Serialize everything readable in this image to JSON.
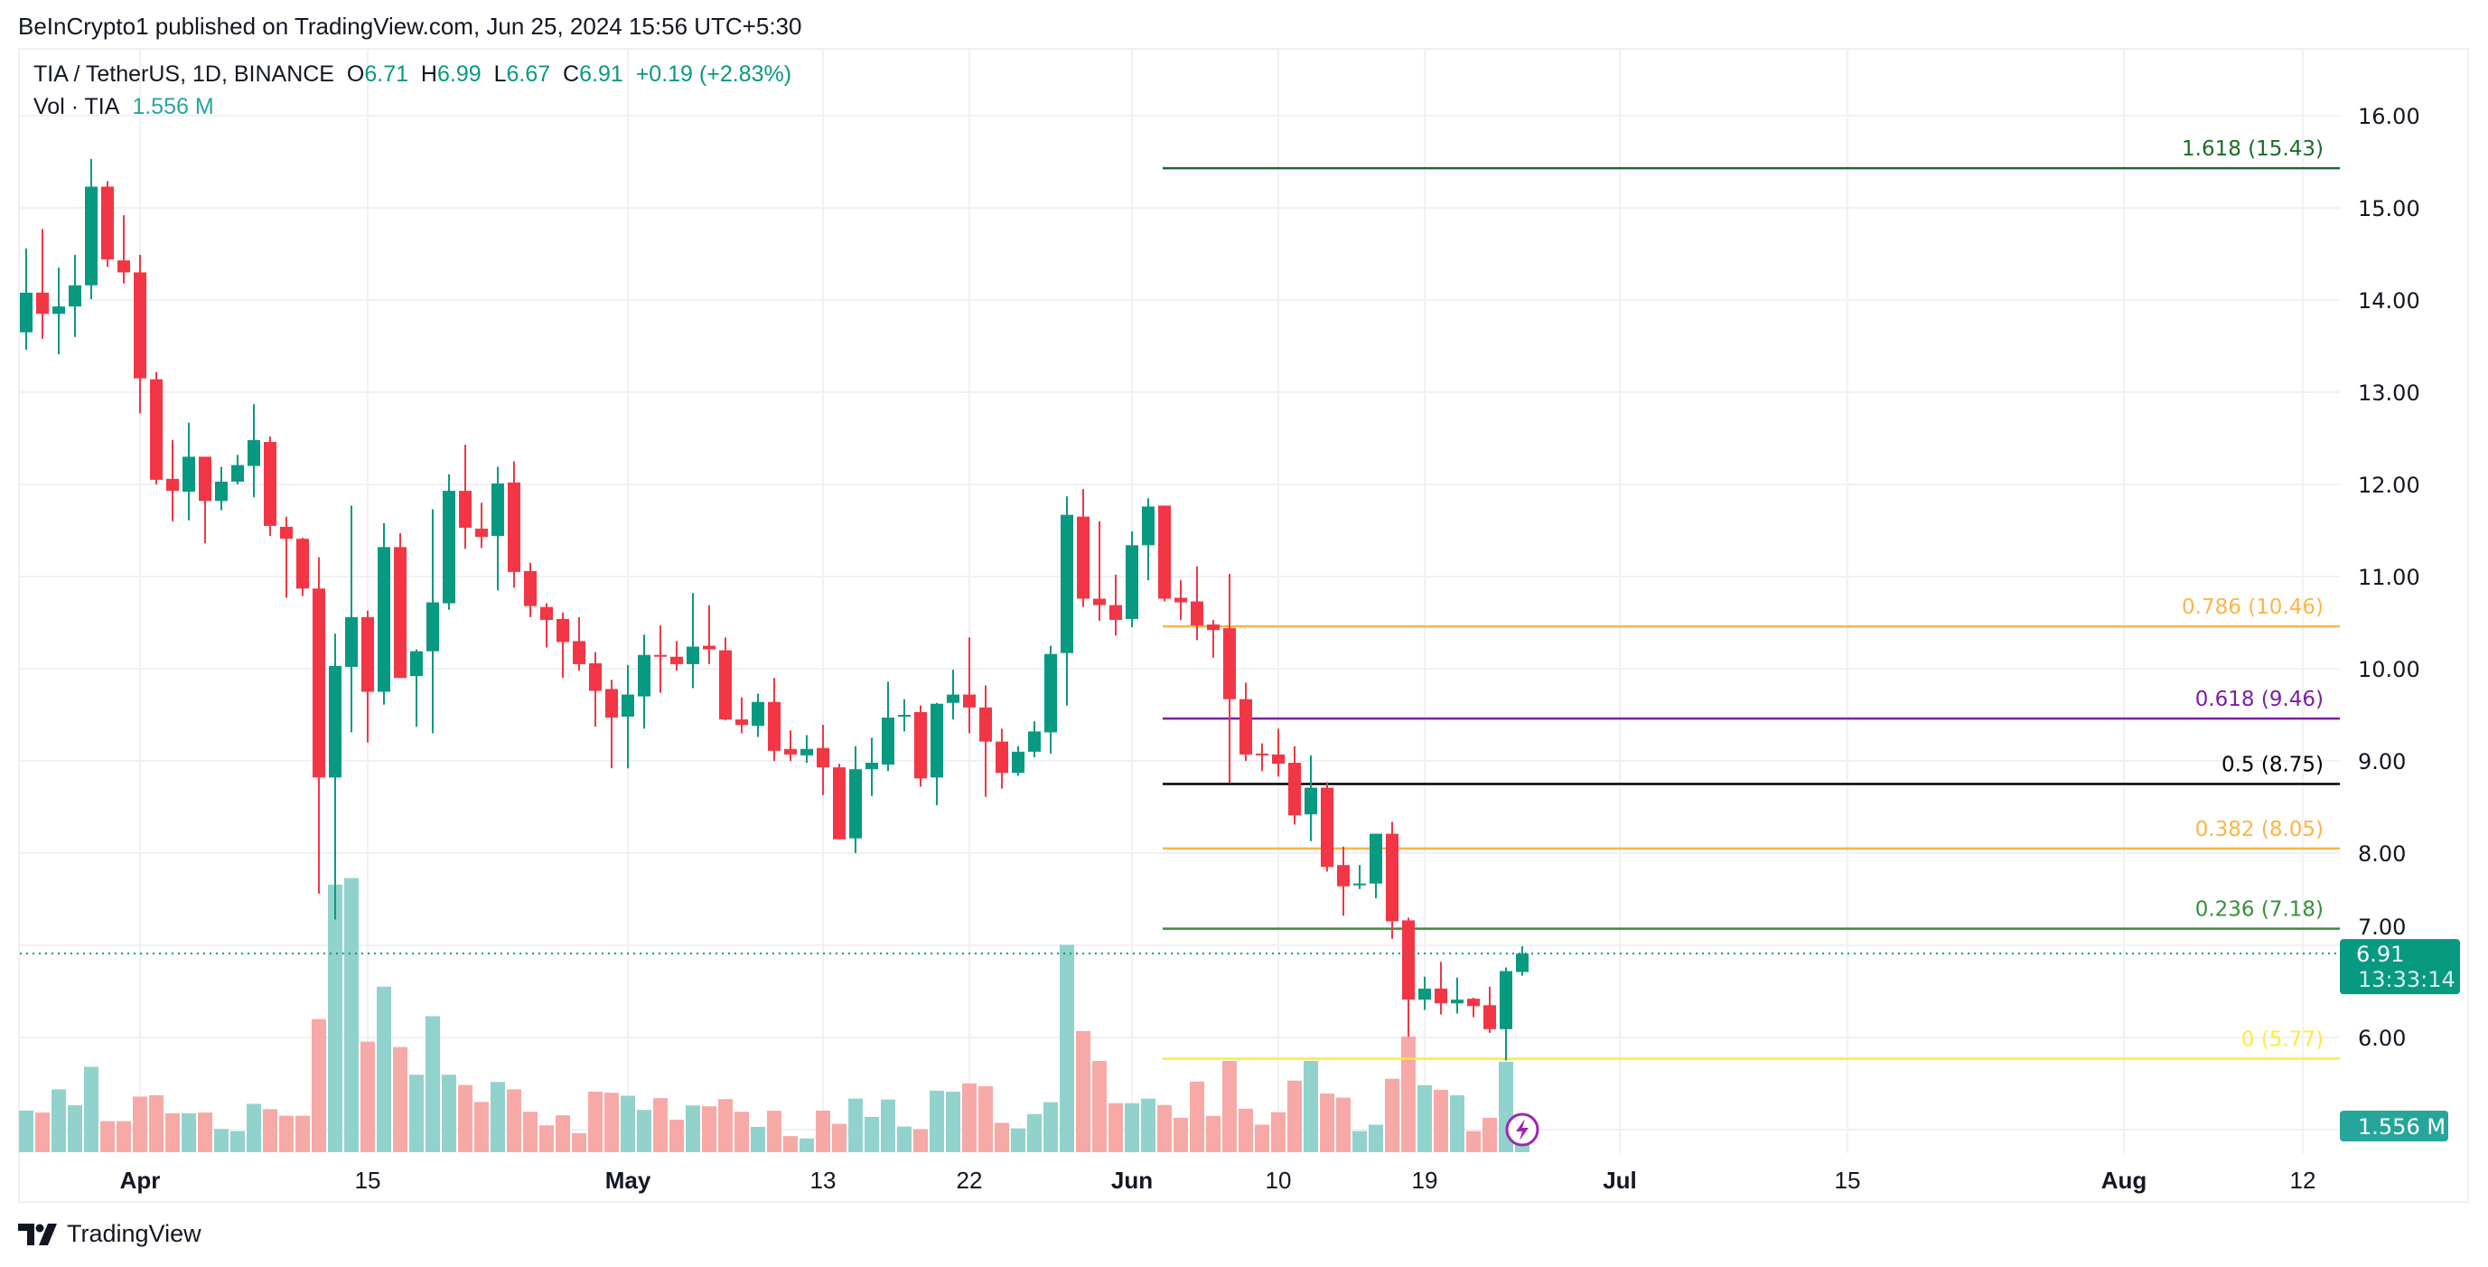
{
  "header": {
    "published": "BeInCrypto1 published on TradingView.com, Jun 25, 2024 15:56 UTC+5:30"
  },
  "legend": {
    "symbol": "TIA / TetherUS, 1D, BINANCE",
    "o_label": "O",
    "o": "6.71",
    "h_label": "H",
    "h": "6.99",
    "l_label": "L",
    "l": "6.67",
    "c_label": "C",
    "c": "6.91",
    "change": "+0.19 (+2.83%)",
    "vol_label": "Vol · TIA",
    "vol": "1.556 M"
  },
  "badges": {
    "price": "6.91",
    "countdown": "13:33:14",
    "volume": "1.556 M"
  },
  "footer": {
    "brand": "TradingView",
    "logo_icon": "tradingview-logo-icon"
  },
  "colors": {
    "up": "#089981",
    "down": "#F23645",
    "vol_up": "#92d2cc",
    "vol_down": "#f7a9a7",
    "grid": "#f0f1f4"
  },
  "chart_data": {
    "type": "candlestick",
    "interval": "1D",
    "first_date": "2024-03-25",
    "ylim": [
      5,
      16
    ],
    "y_ticks": [
      "6.00",
      "7.00",
      "8.00",
      "9.00",
      "10.00",
      "11.00",
      "12.00",
      "13.00",
      "14.00",
      "15.00",
      "16.00"
    ],
    "time_axis": [
      {
        "label": "Apr",
        "date": "2024-04-01",
        "bold": true
      },
      {
        "label": "15",
        "date": "2024-04-15",
        "bold": false
      },
      {
        "label": "May",
        "date": "2024-05-01",
        "bold": true
      },
      {
        "label": "13",
        "date": "2024-05-13",
        "bold": false
      },
      {
        "label": "22",
        "date": "2024-05-22",
        "bold": false
      },
      {
        "label": "Jun",
        "date": "2024-06-01",
        "bold": true
      },
      {
        "label": "10",
        "date": "2024-06-10",
        "bold": false
      },
      {
        "label": "19",
        "date": "2024-06-19",
        "bold": false
      },
      {
        "label": "Jul",
        "date": "2024-07-01",
        "bold": true
      },
      {
        "label": "15",
        "date": "2024-07-15",
        "bold": false
      },
      {
        "label": "Aug",
        "date": "2024-08-01",
        "bold": true
      },
      {
        "label": "12",
        "date": "2024-08-12",
        "bold": false
      }
    ],
    "ohlcv_columns": [
      "open",
      "high",
      "low",
      "close",
      "volume_M"
    ],
    "ohlcv": [
      [
        13.65,
        14.56,
        13.46,
        14.08,
        2.48
      ],
      [
        14.08,
        14.77,
        13.58,
        13.85,
        2.36
      ],
      [
        13.85,
        14.35,
        13.41,
        13.93,
        3.74
      ],
      [
        13.93,
        14.49,
        13.6,
        14.16,
        2.8
      ],
      [
        14.16,
        15.53,
        14.01,
        15.23,
        5.08
      ],
      [
        15.23,
        15.29,
        14.36,
        14.44,
        1.85
      ],
      [
        14.43,
        14.92,
        14.18,
        14.3,
        1.85
      ],
      [
        14.3,
        14.49,
        12.77,
        13.15,
        3.31
      ],
      [
        13.14,
        13.22,
        12.0,
        12.05,
        3.39
      ],
      [
        12.06,
        12.48,
        11.6,
        11.93,
        2.32
      ],
      [
        11.92,
        12.67,
        11.61,
        12.3,
        2.32
      ],
      [
        12.3,
        12.3,
        11.36,
        11.82,
        2.36
      ],
      [
        11.82,
        12.19,
        11.72,
        12.03,
        1.38
      ],
      [
        12.03,
        12.32,
        12.0,
        12.21,
        1.26
      ],
      [
        12.2,
        12.87,
        11.86,
        12.48,
        2.88
      ],
      [
        12.46,
        12.52,
        11.44,
        11.55,
        2.56
      ],
      [
        11.54,
        11.65,
        10.77,
        11.41,
        2.17
      ],
      [
        11.41,
        11.42,
        10.79,
        10.87,
        2.17
      ],
      [
        10.87,
        11.21,
        7.56,
        8.82,
        7.92
      ],
      [
        8.82,
        10.38,
        7.28,
        10.03,
        15.92
      ],
      [
        10.02,
        11.77,
        9.31,
        10.56,
        16.31
      ],
      [
        10.56,
        10.63,
        9.2,
        9.75,
        6.58
      ],
      [
        9.75,
        11.58,
        9.61,
        11.32,
        9.85
      ],
      [
        11.32,
        11.47,
        9.9,
        9.9,
        6.26
      ],
      [
        9.92,
        10.21,
        9.37,
        10.19,
        4.61
      ],
      [
        10.19,
        11.73,
        9.3,
        10.72,
        8.09
      ],
      [
        10.71,
        12.11,
        10.64,
        11.93,
        4.61
      ],
      [
        11.93,
        12.43,
        11.3,
        11.53,
        4.0
      ],
      [
        11.52,
        11.8,
        11.31,
        11.43,
        2.99
      ],
      [
        11.44,
        12.19,
        10.85,
        12.01,
        4.18
      ],
      [
        12.02,
        12.25,
        10.88,
        11.05,
        3.74
      ],
      [
        11.06,
        11.15,
        10.56,
        10.68,
        2.41
      ],
      [
        10.67,
        10.71,
        10.23,
        10.53,
        1.6
      ],
      [
        10.54,
        10.61,
        9.9,
        10.29,
        2.2
      ],
      [
        10.3,
        10.56,
        9.98,
        10.05,
        1.13
      ],
      [
        10.06,
        10.18,
        9.37,
        9.76,
        3.6
      ],
      [
        9.78,
        9.88,
        8.92,
        9.47,
        3.54
      ],
      [
        9.48,
        10.04,
        8.92,
        9.72,
        3.36
      ],
      [
        9.7,
        10.37,
        9.35,
        10.15,
        2.52
      ],
      [
        10.15,
        10.47,
        9.74,
        10.14,
        3.22
      ],
      [
        10.13,
        10.3,
        9.98,
        10.05,
        1.94
      ],
      [
        10.05,
        10.82,
        9.79,
        10.24,
        2.78
      ],
      [
        10.25,
        10.69,
        10.05,
        10.21,
        2.73
      ],
      [
        10.2,
        10.34,
        9.44,
        9.45,
        3.16
      ],
      [
        9.45,
        9.69,
        9.3,
        9.39,
        2.41
      ],
      [
        9.38,
        9.73,
        9.26,
        9.64,
        1.51
      ],
      [
        9.64,
        9.9,
        9.0,
        9.11,
        2.47
      ],
      [
        9.13,
        9.33,
        9.0,
        9.07,
        0.96
      ],
      [
        9.06,
        9.28,
        8.98,
        9.13,
        0.82
      ],
      [
        9.14,
        9.39,
        8.63,
        8.93,
        2.48
      ],
      [
        8.93,
        8.97,
        8.15,
        8.15,
        1.69
      ],
      [
        8.16,
        9.16,
        8.0,
        8.91,
        3.19
      ],
      [
        8.91,
        9.25,
        8.62,
        8.98,
        2.1
      ],
      [
        8.96,
        9.86,
        8.89,
        9.47,
        3.14
      ],
      [
        9.48,
        9.67,
        9.32,
        9.5,
        1.53
      ],
      [
        9.53,
        9.6,
        8.72,
        8.81,
        1.37
      ],
      [
        8.82,
        9.63,
        8.52,
        9.62,
        3.66
      ],
      [
        9.63,
        9.99,
        9.45,
        9.72,
        3.6
      ],
      [
        9.72,
        10.34,
        9.3,
        9.58,
        4.1
      ],
      [
        9.58,
        9.82,
        8.61,
        9.21,
        3.93
      ],
      [
        9.21,
        9.35,
        8.7,
        8.87,
        1.75
      ],
      [
        8.87,
        9.16,
        8.84,
        9.1,
        1.42
      ],
      [
        9.1,
        9.43,
        9.04,
        9.32,
        2.27
      ],
      [
        9.31,
        10.25,
        9.08,
        10.16,
        2.98
      ],
      [
        10.17,
        11.87,
        9.6,
        11.67,
        12.34
      ],
      [
        11.65,
        11.95,
        10.67,
        10.76,
        7.21
      ],
      [
        10.76,
        11.6,
        10.52,
        10.69,
        5.43
      ],
      [
        10.69,
        11.02,
        10.36,
        10.53,
        2.92
      ],
      [
        10.54,
        11.49,
        10.45,
        11.34,
        2.92
      ],
      [
        11.34,
        11.85,
        10.96,
        11.76,
        3.19
      ],
      [
        11.77,
        11.77,
        10.73,
        10.76,
        2.81
      ],
      [
        10.77,
        10.96,
        10.53,
        10.72,
        2.05
      ],
      [
        10.73,
        11.11,
        10.31,
        10.47,
        4.2
      ],
      [
        10.48,
        10.53,
        10.12,
        10.42,
        2.16
      ],
      [
        10.44,
        11.03,
        8.76,
        9.67,
        5.43
      ],
      [
        9.67,
        9.85,
        9.0,
        9.07,
        2.59
      ],
      [
        9.08,
        9.19,
        8.89,
        9.07,
        1.64
      ],
      [
        9.07,
        9.35,
        8.83,
        8.97,
        2.38
      ],
      [
        8.98,
        9.16,
        8.31,
        8.41,
        4.26
      ],
      [
        8.42,
        9.06,
        8.13,
        8.71,
        5.43
      ],
      [
        8.71,
        8.77,
        7.8,
        7.85,
        3.49
      ],
      [
        7.87,
        8.07,
        7.32,
        7.64,
        3.25
      ],
      [
        7.66,
        7.87,
        7.61,
        7.67,
        1.26
      ],
      [
        7.67,
        8.21,
        7.51,
        8.21,
        1.64
      ],
      [
        8.21,
        8.34,
        7.07,
        7.26,
        4.37
      ],
      [
        7.27,
        7.3,
        6.01,
        6.41,
        6.88
      ],
      [
        6.41,
        6.66,
        6.3,
        6.53,
        3.99
      ],
      [
        6.53,
        6.82,
        6.25,
        6.37,
        3.71
      ],
      [
        6.37,
        6.65,
        6.26,
        6.41,
        3.39
      ],
      [
        6.42,
        6.43,
        6.22,
        6.34,
        1.26
      ],
      [
        6.35,
        6.55,
        6.05,
        6.09,
        2.05
      ],
      [
        6.09,
        6.76,
        5.75,
        6.72,
        5.38
      ],
      [
        6.71,
        6.99,
        6.67,
        6.91,
        1.556
      ]
    ],
    "last_price": 6.91,
    "fibonacci": {
      "start_date": "2024-06-03",
      "levels": [
        {
          "ratio": "1.618",
          "price": 15.43,
          "label": "1.618 (15.43)",
          "color": "#1e6b26"
        },
        {
          "ratio": "0.786",
          "price": 10.46,
          "label": "0.786 (10.46)",
          "color": "#ffb347"
        },
        {
          "ratio": "0.618",
          "price": 9.46,
          "label": "0.618 (9.46)",
          "color": "#7b1fa2"
        },
        {
          "ratio": "0.5",
          "price": 8.75,
          "label": "0.5 (8.75)",
          "color": "#000000"
        },
        {
          "ratio": "0.382",
          "price": 8.05,
          "label": "0.382 (8.05)",
          "color": "#ffb347"
        },
        {
          "ratio": "0.236",
          "price": 7.18,
          "label": "0.236 (7.18)",
          "color": "#388e3c"
        },
        {
          "ratio": "0",
          "price": 5.77,
          "label": "0 (5.77)",
          "color": "#ffeb3b"
        }
      ]
    }
  }
}
